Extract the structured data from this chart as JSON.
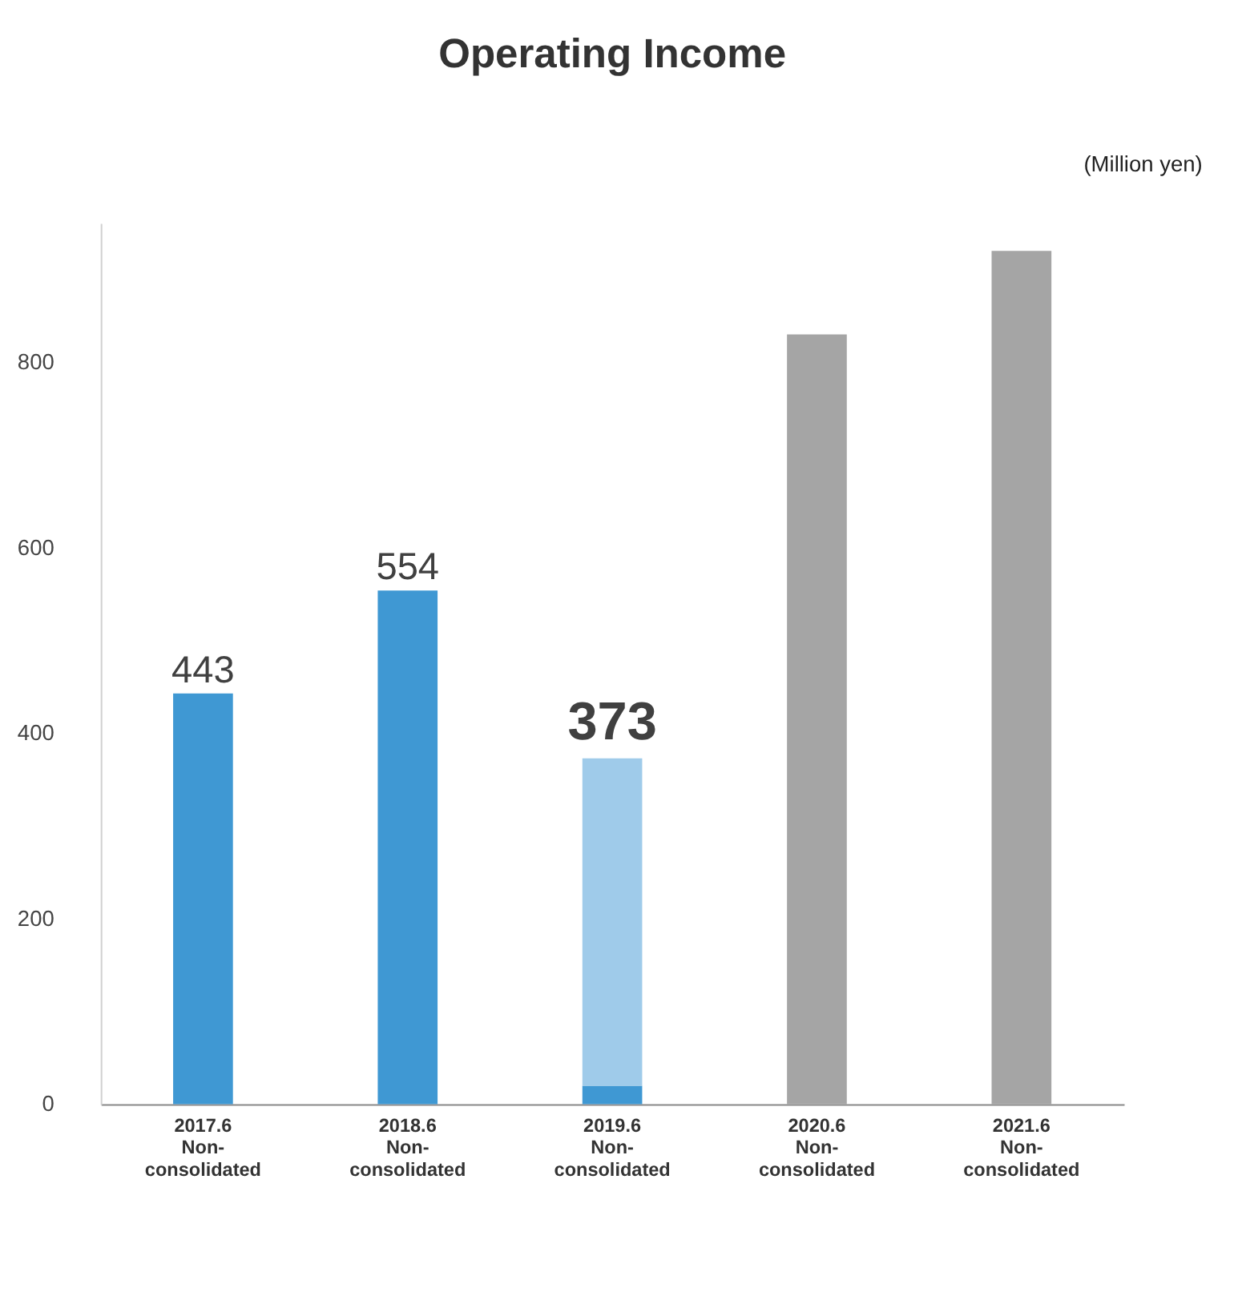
{
  "chart_data": {
    "type": "bar",
    "title": "Operating Income",
    "annotations": [
      "(Million yen)"
    ],
    "categories": [
      "2017.6\nNon-\nconsolidated",
      "2018.6\nNon-\nconsolidated",
      "2019.6\nNon-\nconsolidated",
      "2020.6\nNon-\nconsolidated",
      "2021.6\nNon-\nconsolidated"
    ],
    "stacked": true,
    "series": [
      {
        "colors": [
          "#3f98d3",
          "#3f98d3",
          "#3f98d3",
          "#a5a5a5",
          "#a5a5a5"
        ],
        "values": [
          443,
          554,
          20,
          830,
          920
        ],
        "value_labels": [
          "443",
          "554",
          null,
          null,
          null
        ]
      },
      {
        "color": "#9fcbea",
        "values": [
          null,
          null,
          353,
          null,
          null
        ]
      }
    ],
    "totals": [
      null,
      null,
      "373",
      null,
      null
    ],
    "ylim": [
      0,
      950
    ],
    "yticks": [
      0,
      200,
      400,
      600,
      800
    ],
    "grid": false
  }
}
